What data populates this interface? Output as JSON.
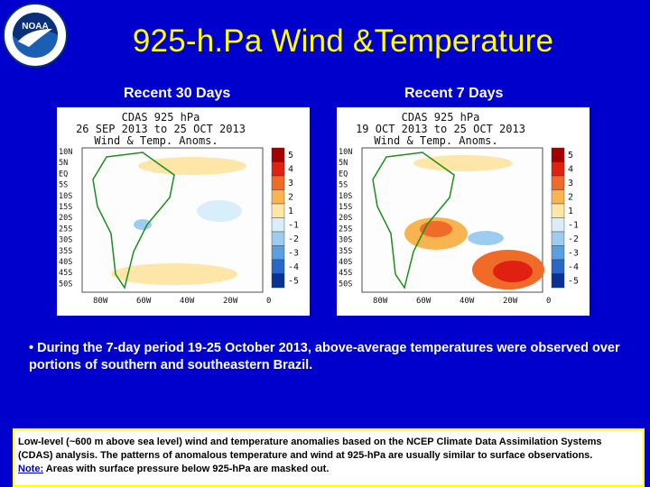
{
  "slide": {
    "title": "925-h.Pa Wind &Temperature",
    "logo_text": "NOAA",
    "left_label": "Recent 30 Days",
    "right_label": "Recent 7 Days",
    "bullet": "• During the 7-day period 19-25 October 2013, above-average temperatures were observed over portions of southern and southeastern Brazil.",
    "note_text": "Low-level (~600 m above sea level) wind and temperature anomalies based on the NCEP Climate Data Assimilation Systems (CDAS) analysis. The patterns of anomalous temperature and wind at 925-hPa are usually similar to surface observations.",
    "note_label": "Note:",
    "note_tail": " Areas with surface pressure below 925-hPa are masked out."
  },
  "maps": [
    {
      "line1": "CDAS 925 hPa",
      "line2": "26 SEP 2013 to 25 OCT 2013",
      "line3": "Wind & Temp. Anoms."
    },
    {
      "line1": "CDAS 925 hPa",
      "line2": "19 OCT 2013 to 25 OCT 2013",
      "line3": "Wind & Temp. Anoms."
    }
  ],
  "axes": {
    "lat_labels": [
      "10N",
      "5N",
      "EQ",
      "5S",
      "10S",
      "15S",
      "20S",
      "25S",
      "30S",
      "35S",
      "40S",
      "45S",
      "50S"
    ],
    "lon_labels": [
      "80W",
      "60W",
      "40W",
      "20W",
      "0"
    ]
  },
  "colorbar": {
    "labels": [
      "5",
      "4",
      "3",
      "2",
      "1",
      "-1",
      "-2",
      "-3",
      "-4",
      "-5"
    ],
    "colors": [
      "#a50000",
      "#e02010",
      "#f06a28",
      "#f8b450",
      "#fde6a8",
      "#d8eefa",
      "#9ccdf0",
      "#5aa0e0",
      "#2a66c8",
      "#0a3296"
    ]
  }
}
